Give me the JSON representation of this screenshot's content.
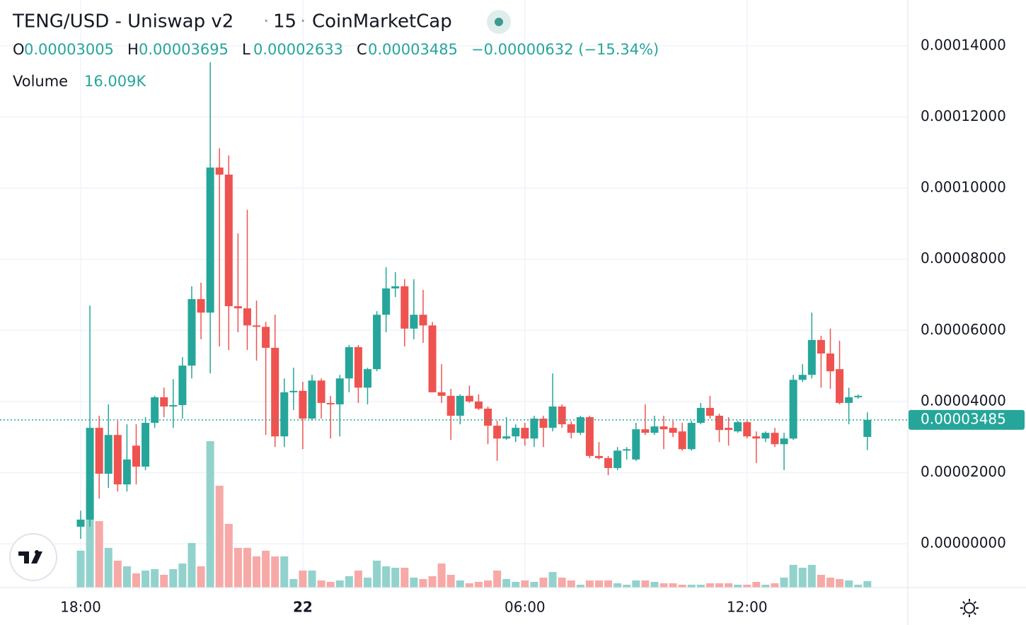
{
  "header": {
    "symbol": "TENG/USD - Uniswap v2",
    "interval": "15",
    "source": "CoinMarketCap",
    "ohlc_letters": [
      "O",
      "H",
      "L",
      "C"
    ],
    "change": "−0.00000632 (−15.34%)"
  },
  "chart_data": {
    "type": "candlestick",
    "categories": [
      "18:00",
      null,
      null,
      null,
      null,
      null,
      null,
      null,
      null,
      null,
      null,
      null,
      null,
      null,
      null,
      null,
      null,
      null,
      null,
      null,
      null,
      null,
      null,
      null,
      "22",
      null,
      null,
      null,
      null,
      null,
      null,
      null,
      null,
      null,
      null,
      null,
      null,
      null,
      null,
      null,
      null,
      null,
      null,
      null,
      null,
      null,
      null,
      null,
      "06:00",
      null,
      null,
      null,
      null,
      null,
      null,
      null,
      null,
      null,
      null,
      null,
      null,
      null,
      null,
      null,
      null,
      null,
      null,
      null,
      null,
      null,
      null,
      null,
      "12:00",
      null,
      null,
      null,
      null,
      null,
      null,
      null,
      null,
      null,
      null,
      null,
      null,
      null
    ],
    "open": [
      4.8e-06,
      6.8e-06,
      3.26e-05,
      1.97e-05,
      3.06e-05,
      1.67e-05,
      2.76e-05,
      2.17e-05,
      3.4e-05,
      4.12e-05,
      3.86e-05,
      3.9e-05,
      5.01e-05,
      6.88e-05,
      6.5e-05,
      0.0001058,
      0.0001038,
      6.68e-05,
      6.62e-05,
      6.14e-05,
      6.1e-05,
      5.51e-05,
      3.02e-05,
      4.26e-05,
      4.3e-05,
      3.52e-05,
      4.59e-05,
      3.96e-05,
      3.92e-05,
      4.65e-05,
      5.53e-05,
      4.39e-05,
      4.91e-05,
      6.44e-05,
      7.18e-05,
      7.24e-05,
      6.05e-05,
      6.44e-05,
      6.14e-05,
      4.26e-05,
      4.16e-05,
      3.6e-05,
      4.16e-05,
      4e-05,
      3.8e-05,
      3.32e-05,
      2.96e-05,
      3.02e-05,
      3.26e-05,
      2.96e-05,
      3.52e-05,
      3.26e-05,
      3.86e-05,
      3.36e-05,
      3.12e-05,
      3.56e-05,
      2.47e-05,
      2.41e-05,
      2.13e-05,
      2.62e-05,
      2.37e-05,
      3.22e-05,
      3.12e-05,
      3.3e-05,
      3.26e-05,
      3.16e-05,
      2.66e-05,
      3.4e-05,
      3.82e-05,
      3.6e-05,
      3.26e-05,
      3.16e-05,
      3.42e-05,
      3.02e-05,
      2.96e-05,
      3.12e-05,
      2.8e-05,
      2.96e-05,
      4.61e-05,
      4.75e-05,
      5.73e-05,
      5.35e-05,
      4.91e-05,
      3.96e-05,
      4.12e-05,
      3.005e-05
    ],
    "high": [
      9.3e-06,
      6.7e-05,
      3.6e-05,
      3.92e-05,
      3.46e-05,
      3.36e-05,
      3.36e-05,
      3.56e-05,
      4.16e-05,
      4.39e-05,
      4.63e-05,
      5.25e-05,
      7.24e-05,
      7.34e-05,
      0.0001354,
      0.0001112,
      0.0001092,
      8.73e-05,
      9.39e-05,
      6.84e-05,
      6.24e-05,
      6.44e-05,
      4.65e-05,
      4.95e-05,
      4.55e-05,
      4.75e-05,
      4.65e-05,
      4.16e-05,
      4.75e-05,
      5.59e-05,
      5.59e-05,
      4.95e-05,
      6.54e-05,
      7.78e-05,
      7.64e-05,
      7.44e-05,
      7.44e-05,
      7.14e-05,
      6.24e-05,
      5.05e-05,
      4.36e-05,
      4.2e-05,
      4.45e-05,
      4.2e-05,
      3.86e-05,
      3.46e-05,
      3.56e-05,
      3.36e-05,
      3.4e-05,
      3.6e-05,
      3.6e-05,
      4.79e-05,
      3.92e-05,
      3.44e-05,
      3.6e-05,
      3.6e-05,
      2.86e-05,
      2.47e-05,
      2.72e-05,
      2.72e-05,
      3.4e-05,
      3.92e-05,
      3.6e-05,
      3.6e-05,
      3.46e-05,
      3.4e-05,
      3.46e-05,
      3.96e-05,
      4.16e-05,
      3.66e-05,
      3.56e-05,
      3.46e-05,
      3.46e-05,
      3.16e-05,
      3.16e-05,
      3.26e-05,
      3.12e-05,
      4.75e-05,
      5.05e-05,
      6.5e-05,
      5.85e-05,
      6.05e-05,
      5.71e-05,
      4.39e-05,
      4.2e-05,
      3.695e-05
    ],
    "low": [
      1.4e-06,
      4.8e-06,
      1.27e-05,
      1.57e-05,
      1.47e-05,
      1.47e-05,
      1.67e-05,
      2.07e-05,
      3.26e-05,
      3.56e-05,
      3.26e-05,
      3.52e-05,
      4.65e-05,
      5.75e-05,
      4.79e-05,
      5.55e-05,
      5.45e-05,
      5.95e-05,
      5.45e-05,
      5.15e-05,
      3.06e-05,
      2.72e-05,
      2.72e-05,
      3.76e-05,
      2.66e-05,
      3.46e-05,
      3.52e-05,
      2.96e-05,
      3.02e-05,
      4.26e-05,
      3.96e-05,
      3.92e-05,
      4.85e-05,
      5.95e-05,
      6.94e-05,
      5.55e-05,
      5.75e-05,
      5.65e-05,
      4.26e-05,
      3.96e-05,
      2.92e-05,
      3.36e-05,
      3.96e-05,
      3.76e-05,
      2.8e-05,
      2.33e-05,
      2.92e-05,
      2.86e-05,
      2.76e-05,
      2.72e-05,
      2.72e-05,
      3.16e-05,
      3.26e-05,
      2.96e-05,
      3.06e-05,
      2.41e-05,
      2.37e-05,
      1.93e-05,
      2.07e-05,
      2.37e-05,
      2.33e-05,
      3.06e-05,
      3.06e-05,
      2.66e-05,
      3e-05,
      2.62e-05,
      2.62e-05,
      3.36e-05,
      3.52e-05,
      2.86e-05,
      2.76e-05,
      3.12e-05,
      2.96e-05,
      2.27e-05,
      2.86e-05,
      2.72e-05,
      2.07e-05,
      2.92e-05,
      4.55e-05,
      4.65e-05,
      4.39e-05,
      4.36e-05,
      3.92e-05,
      3.36e-05,
      4.08e-05,
      2.633e-05
    ],
    "close": [
      6.8e-06,
      3.26e-05,
      1.97e-05,
      3.06e-05,
      1.67e-05,
      2.37e-05,
      2.17e-05,
      3.4e-05,
      4.12e-05,
      3.86e-05,
      3.9e-05,
      5.01e-05,
      6.88e-05,
      6.5e-05,
      0.0001058,
      0.0001038,
      6.68e-05,
      6.62e-05,
      6.14e-05,
      6.1e-05,
      5.51e-05,
      3.02e-05,
      4.26e-05,
      4.3e-05,
      3.52e-05,
      4.59e-05,
      3.96e-05,
      3.92e-05,
      4.65e-05,
      5.53e-05,
      4.39e-05,
      4.91e-05,
      6.44e-05,
      7.18e-05,
      7.24e-05,
      6.05e-05,
      6.44e-05,
      6.14e-05,
      4.26e-05,
      4.16e-05,
      3.6e-05,
      4.16e-05,
      4e-05,
      3.8e-05,
      3.32e-05,
      2.96e-05,
      3.02e-05,
      3.26e-05,
      2.96e-05,
      3.52e-05,
      3.26e-05,
      3.86e-05,
      3.36e-05,
      3.12e-05,
      3.56e-05,
      2.47e-05,
      2.41e-05,
      2.13e-05,
      2.62e-05,
      2.66e-05,
      3.22e-05,
      3.12e-05,
      3.3e-05,
      3.22e-05,
      3.12e-05,
      2.66e-05,
      3.4e-05,
      3.82e-05,
      3.6e-05,
      3.2e-05,
      3.2e-05,
      3.42e-05,
      3.02e-05,
      2.96e-05,
      3.12e-05,
      2.8e-05,
      2.96e-05,
      4.61e-05,
      4.75e-05,
      5.73e-05,
      5.35e-05,
      4.85e-05,
      3.96e-05,
      4.12e-05,
      4.16e-05,
      3.485e-05
    ],
    "volume": {
      "name": "Volume",
      "last_label": "16.009K",
      "values": [
        92.6,
        251,
        167,
        99.7,
        67.6,
        53.4,
        35.6,
        42.7,
        46.3,
        32,
        46.3,
        60.5,
        112,
        53.4,
        368,
        256,
        160,
        99.7,
        99.7,
        78.3,
        92.6,
        78.3,
        78.3,
        21.4,
        42.7,
        42.7,
        17.8,
        14.2,
        17.8,
        28.5,
        42.7,
        24.9,
        67.6,
        53.4,
        49.8,
        49.8,
        24.9,
        21.4,
        28.5,
        60.5,
        32,
        17.8,
        10.7,
        14.2,
        17.8,
        42.7,
        21.4,
        14.2,
        17.8,
        14.2,
        24.9,
        39.2,
        24.9,
        17.8,
        7.1,
        17.8,
        17.8,
        17.8,
        10.7,
        7.1,
        17.8,
        17.8,
        14.2,
        10.7,
        10.7,
        7.1,
        7.1,
        7.1,
        10.7,
        10.7,
        10.7,
        7.1,
        7.1,
        14.2,
        7.1,
        10.7,
        24.9,
        57,
        49.8,
        57,
        32,
        24.9,
        21.4,
        17.8,
        7.1,
        16.009
      ]
    },
    "up_color": "#26a69a",
    "down_color": "#ef5350",
    "up_volume_color": "#92d2cc",
    "down_volume_color": "#f7a9a7",
    "ylim": [
      -1.23e-05,
      0.0001529
    ],
    "yticks": [
      {
        "value": 0,
        "label": "0.00000000"
      },
      {
        "value": 2e-05,
        "label": "0.00002000"
      },
      {
        "value": 4e-05,
        "label": "0.00004000"
      },
      {
        "value": 6e-05,
        "label": "0.00006000"
      },
      {
        "value": 8e-05,
        "label": "0.00008000"
      },
      {
        "value": 0.0001,
        "label": "0.00010000"
      },
      {
        "value": 0.00012,
        "label": "0.00012000"
      },
      {
        "value": 0.00014,
        "label": "0.00014000"
      }
    ],
    "grid": true,
    "last_price_line": true
  }
}
